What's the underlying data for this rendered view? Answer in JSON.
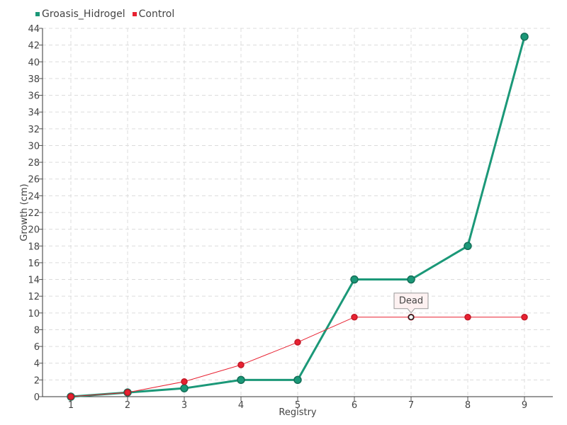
{
  "legend": [
    {
      "name": "Groasis_Hidrogel",
      "color": "#1b9878"
    },
    {
      "name": "Control",
      "color": "#e82131"
    }
  ],
  "chart_data": {
    "type": "line",
    "xlabel": "Registry",
    "ylabel": "Growth (cm)",
    "x": [
      1,
      2,
      3,
      4,
      5,
      6,
      7,
      8,
      9
    ],
    "ylim": [
      0,
      44
    ],
    "y_ticks": [
      0,
      2,
      4,
      6,
      8,
      10,
      12,
      14,
      16,
      18,
      20,
      22,
      24,
      26,
      28,
      30,
      32,
      34,
      36,
      38,
      40,
      42,
      44
    ],
    "grid": true,
    "legend_position": "top-left",
    "series": [
      {
        "name": "Groasis_Hidrogel",
        "color": "#1b9878",
        "values": [
          0,
          0.5,
          1,
          2,
          2,
          14,
          14,
          18,
          43
        ]
      },
      {
        "name": "Control",
        "color": "#e82131",
        "values": [
          0,
          0.5,
          1.8,
          3.8,
          6.5,
          9.5,
          9.5,
          9.5,
          9.5
        ]
      }
    ],
    "annotations": [
      {
        "text": "Dead",
        "series": "Control",
        "x": 7,
        "y": 9.5
      }
    ]
  }
}
